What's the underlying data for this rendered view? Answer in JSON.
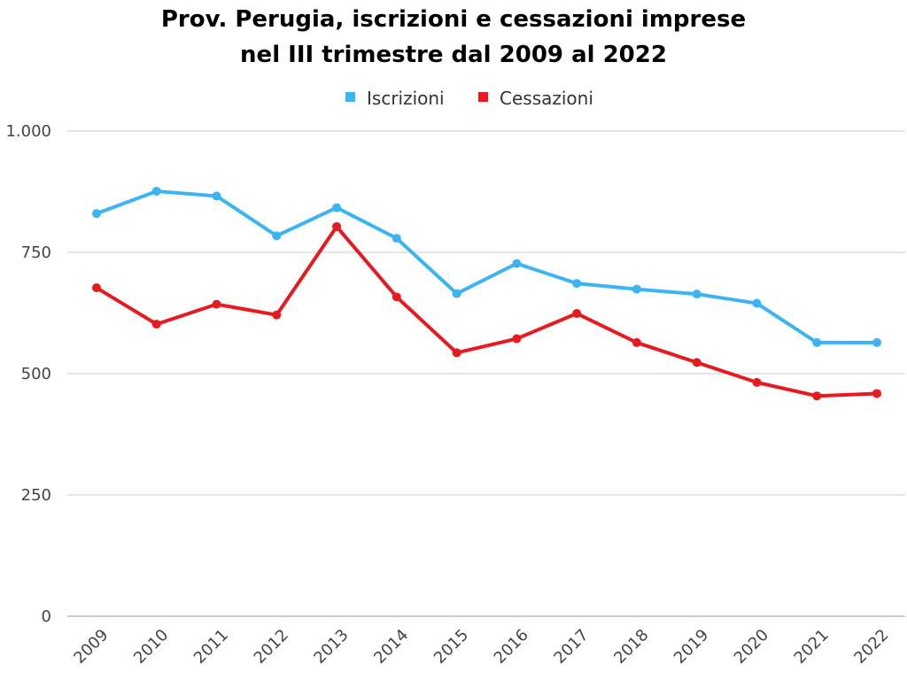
{
  "chart_data": {
    "type": "line",
    "title": "Prov. Perugia, iscrizioni e cessazioni imprese nel III trimestre dal 2009 al 2022",
    "title_lines": [
      "Prov. Perugia, iscrizioni e cessazioni imprese",
      "nel III trimestre dal 2009 al 2022"
    ],
    "xlabel": "",
    "ylabel": "",
    "categories": [
      "2009",
      "2010",
      "2011",
      "2012",
      "2013",
      "2014",
      "2015",
      "2016",
      "2017",
      "2018",
      "2019",
      "2020",
      "2021",
      "2022"
    ],
    "series": [
      {
        "name": "Iscrizioni",
        "color": "#3AB4F2",
        "values": [
          830,
          876,
          866,
          784,
          842,
          779,
          665,
          727,
          686,
          674,
          664,
          645,
          564,
          564
        ]
      },
      {
        "name": "Cessazioni",
        "color": "#E8191F",
        "values": [
          677,
          602,
          643,
          621,
          803,
          658,
          543,
          572,
          624,
          564,
          523,
          482,
          454,
          459
        ]
      }
    ],
    "ylim": [
      0,
      1000
    ],
    "yticks": [
      0,
      250,
      500,
      750,
      1000
    ],
    "ytick_labels": [
      "0",
      "250",
      "500",
      "750",
      "1.000"
    ],
    "grid": true,
    "legend_position": "top-center"
  }
}
